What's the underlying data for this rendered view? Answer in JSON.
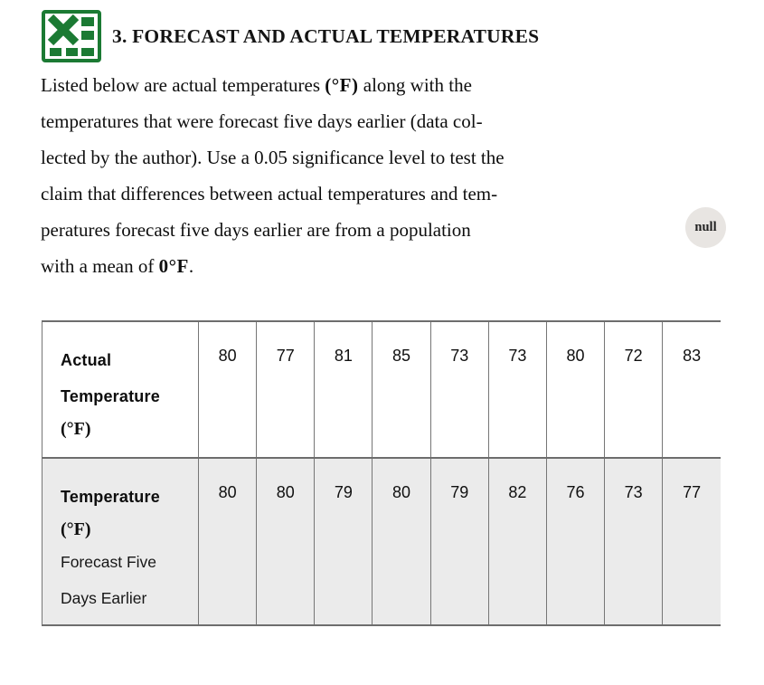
{
  "header": {
    "icon": "excel-icon",
    "title": "3. FORECAST AND ACTUAL TEMPERATURES"
  },
  "problem": {
    "lines": [
      {
        "segments": [
          {
            "text": "Listed below are actual temperatures "
          },
          {
            "text": "(°F)",
            "bold": true
          },
          {
            "text": " along with the"
          }
        ]
      },
      {
        "segments": [
          {
            "text": "temperatures that were forecast five days earlier (data col-"
          }
        ]
      },
      {
        "segments": [
          {
            "text": "lected by the author). Use a 0.05 significance level to test the"
          }
        ]
      },
      {
        "segments": [
          {
            "text": "claim that differences between actual temperatures and tem-"
          }
        ]
      },
      {
        "segments": [
          {
            "text": "peratures forecast five days earlier are from a population"
          }
        ]
      },
      {
        "segments": [
          {
            "text": "with a mean of "
          },
          {
            "text": "0°F",
            "bold": true
          },
          {
            "text": "."
          }
        ]
      }
    ]
  },
  "badge": {
    "label": "null"
  },
  "table": {
    "rows": [
      {
        "name": "actual-temperature-row",
        "label_lines": [
          {
            "text": "Actual",
            "style": "bold"
          },
          {
            "text": "Temperature",
            "style": "bold"
          },
          {
            "text": "(°F)",
            "style": "unit"
          }
        ],
        "values": [
          80,
          77,
          81,
          85,
          73,
          73,
          80,
          72,
          83
        ]
      },
      {
        "name": "forecast-temperature-row",
        "label_lines": [
          {
            "text": "Temperature",
            "style": "bold"
          },
          {
            "text": "(°F)",
            "style": "unit"
          },
          {
            "text": "Forecast Five",
            "style": "normal"
          },
          {
            "text": "Days Earlier",
            "style": "normal"
          }
        ],
        "values": [
          80,
          80,
          79,
          80,
          79,
          82,
          76,
          73,
          77
        ]
      }
    ]
  },
  "colors": {
    "excel_green": "#1b7a33",
    "row_shade": "#ebebeb",
    "border": "#6d6d6d",
    "badge_bg": "#e8e5e2",
    "text": "#101010"
  }
}
